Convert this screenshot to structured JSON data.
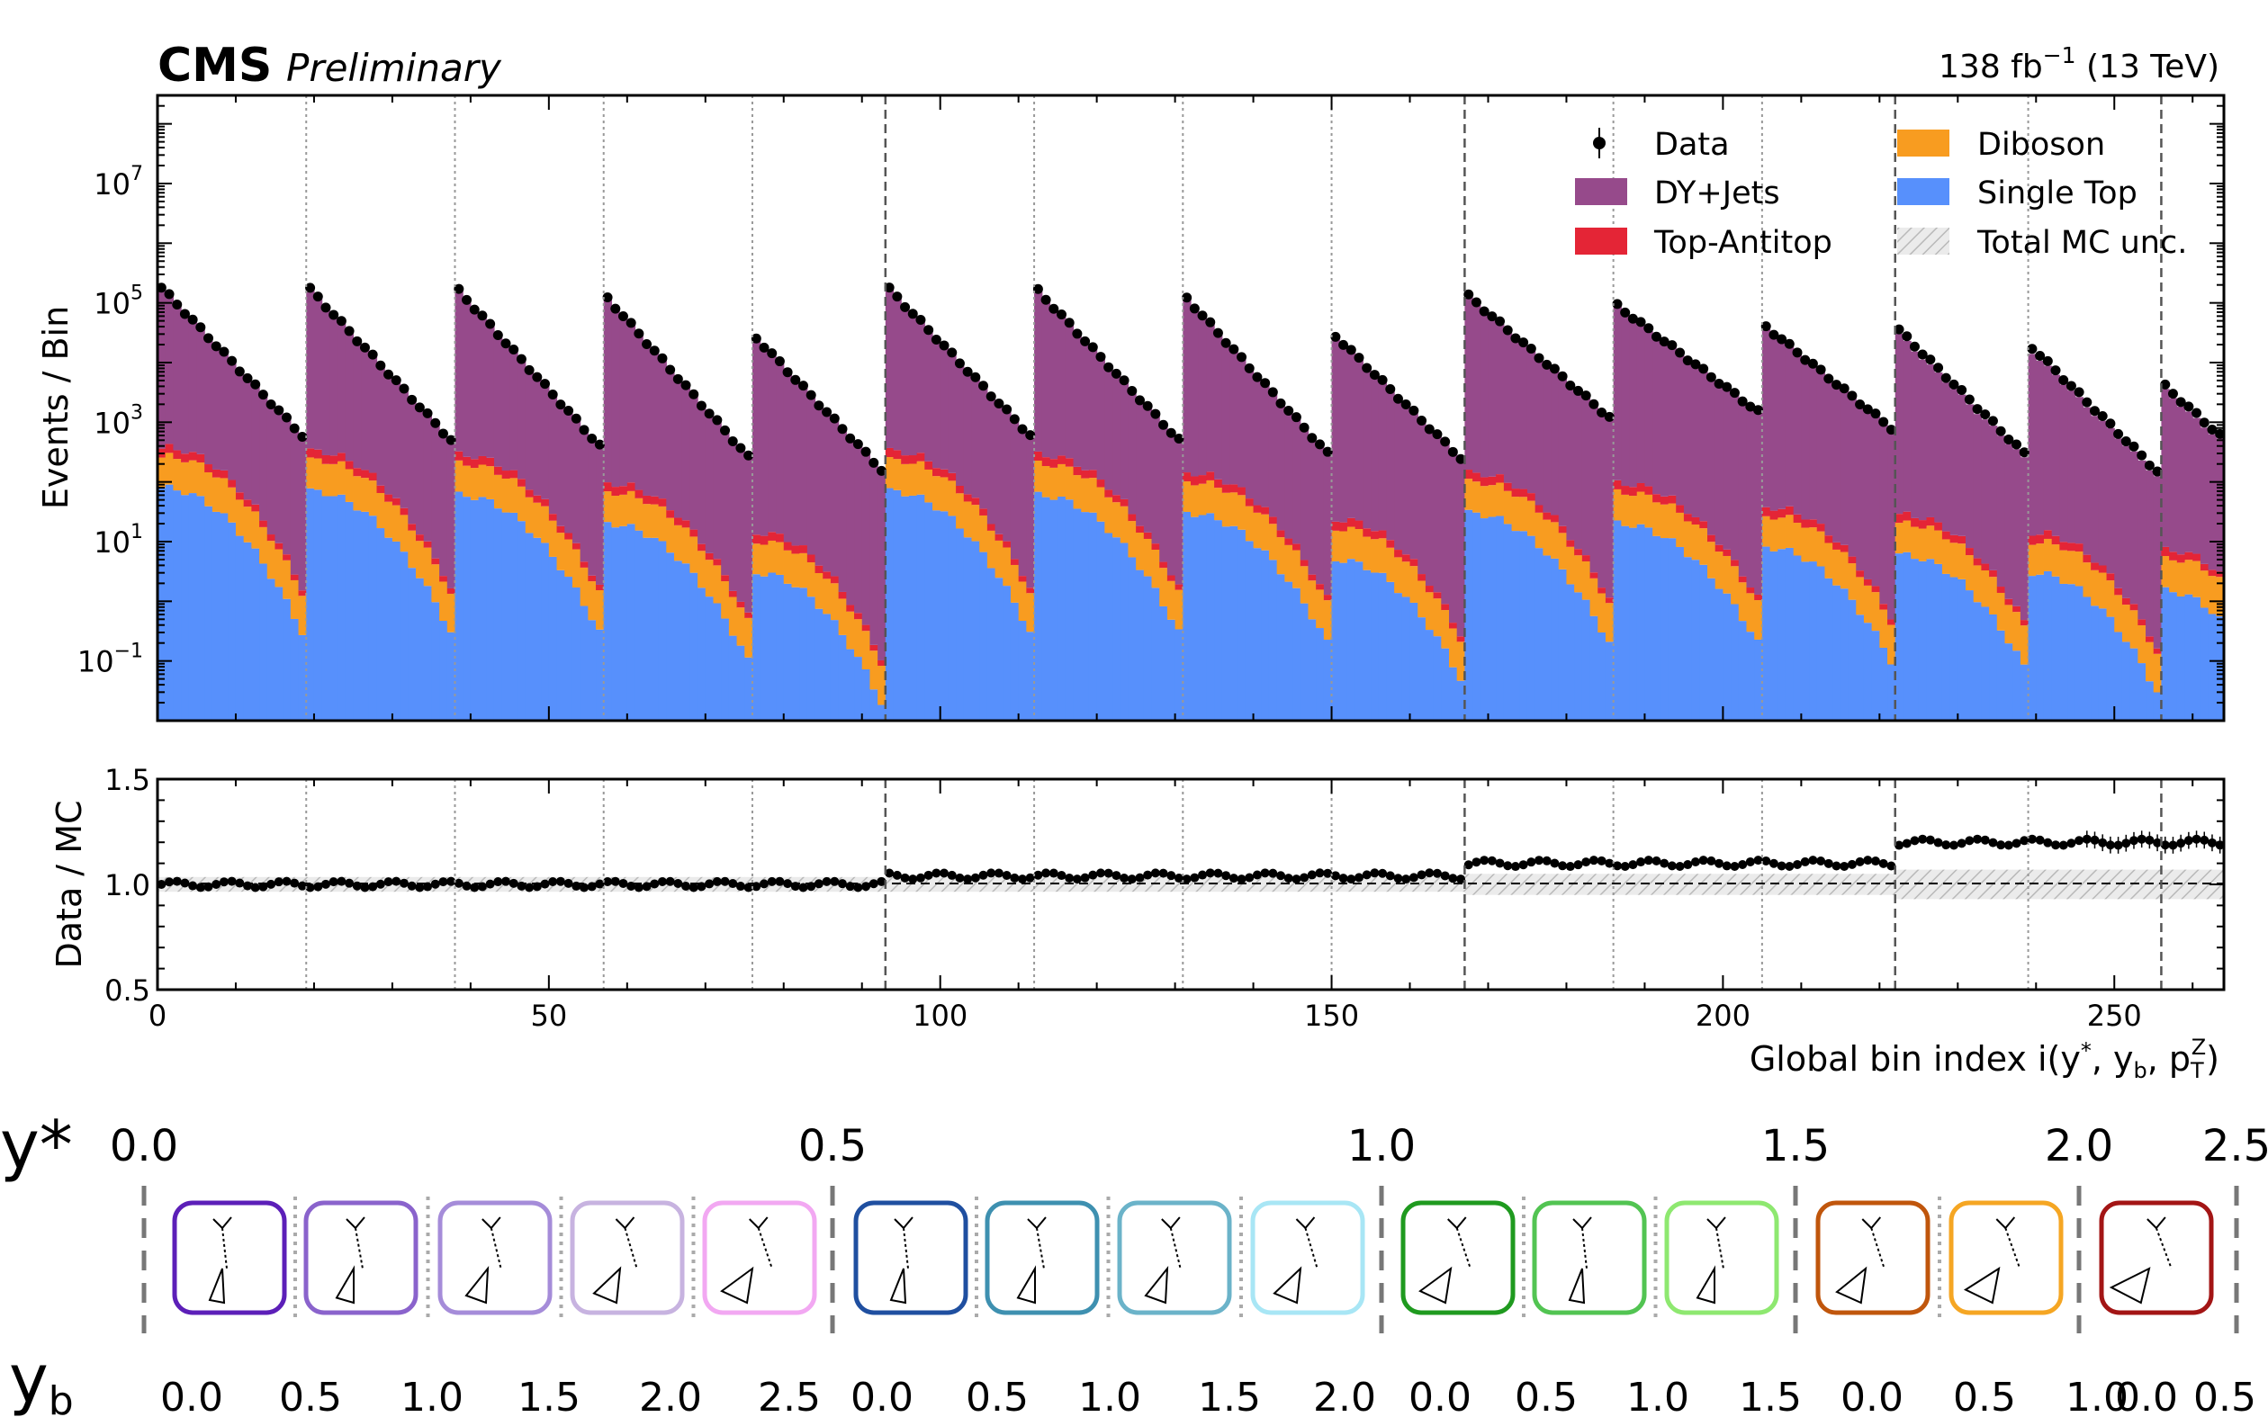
{
  "header": {
    "experiment": "CMS",
    "status": "Preliminary",
    "lumi_prefix": "138 fb",
    "lumi_exp": "−1",
    "lumi_suffix": " (13 TeV)"
  },
  "legend": {
    "data": "Data",
    "dyjets": "DY+Jets",
    "ttbar": "Top-Antitop",
    "diboson": "Diboson",
    "singletop": "Single Top",
    "unc": "Total MC unc."
  },
  "axes": {
    "top_ylabel": "Events / Bin",
    "ratio_ylabel": "Data / MC",
    "xlabel_main": "Global bin index i(y",
    "xlabel_sup1": "*",
    "xlabel_mid": ", y",
    "xlabel_sub1": "b",
    "xlabel_mid2": ", p",
    "xlabel_sub2": "T",
    "xlabel_sup2": "Z",
    "xlabel_end": ")",
    "top_yticks": [
      {
        "base": "10",
        "exp": "−1",
        "value": 0.1
      },
      {
        "base": "10",
        "exp": "1",
        "value": 10
      },
      {
        "base": "10",
        "exp": "3",
        "value": 1000
      },
      {
        "base": "10",
        "exp": "5",
        "value": 100000
      },
      {
        "base": "10",
        "exp": "7",
        "value": 10000000
      }
    ],
    "ratio_yticks": [
      "0.5",
      "1.0",
      "1.5"
    ],
    "xticks": [
      "0",
      "50",
      "100",
      "150",
      "200",
      "250"
    ]
  },
  "scheme": {
    "ystar_symbol": "y*",
    "yb_symbol": "y",
    "yb_sub": "b",
    "ystar_labels": [
      "0.0",
      "0.5",
      "1.0",
      "1.5",
      "2.0",
      "2.5"
    ],
    "yb_labels": [
      "0.0",
      "0.5",
      "1.0",
      "1.5",
      "2.0",
      "2.5",
      "0.0",
      "0.5",
      "1.0",
      "1.5",
      "2.0",
      "0.0",
      "0.5",
      "1.0",
      "1.5",
      "0.0",
      "0.5",
      "1.0",
      "0.0",
      "0.5"
    ],
    "box_colors": [
      "#5c1fb8",
      "#8a63cc",
      "#a58cd9",
      "#c7b3e0",
      "#f2a8f2",
      "#1f4fa0",
      "#3e90b0",
      "#6bb3c9",
      "#a8e6f5",
      "#1f9a1f",
      "#52c452",
      "#8ee870",
      "#c0560c",
      "#f5a623",
      "#a31515"
    ]
  },
  "chart_data": {
    "type": "bar",
    "stacked": true,
    "x_range": [
      0,
      264
    ],
    "y_scale": "log",
    "y_range": [
      0.01,
      300000000
    ],
    "ratio_range": [
      0.5,
      1.5
    ],
    "grid": false,
    "legend_position": "top-right",
    "colors": {
      "DY+Jets": "#964a8b",
      "Top-Antitop": "#e42536",
      "Diboson": "#f89c20",
      "Single Top": "#5790fc",
      "Total MC unc.": "#b9b9b9"
    },
    "block_edges": [
      0,
      19,
      38,
      57,
      76,
      93,
      112,
      131,
      150,
      167,
      186,
      205,
      222,
      239,
      256,
      264
    ],
    "major_block_edges": [
      93,
      167,
      222,
      256
    ],
    "blocks": [
      {
        "ystar": "0.0-0.5",
        "yb": "0.0-0.5",
        "data_first": 180000,
        "data_last": 600,
        "singletop_first": 80,
        "singletop_last": 0.3
      },
      {
        "ystar": "0.0-0.5",
        "yb": "0.5-1.0",
        "data_first": 170000,
        "data_last": 500,
        "singletop_first": 70,
        "singletop_last": 0.3
      },
      {
        "ystar": "0.0-0.5",
        "yb": "1.0-1.5",
        "data_first": 160000,
        "data_last": 400,
        "singletop_first": 60,
        "singletop_last": 0.3
      },
      {
        "ystar": "0.0-0.5",
        "yb": "1.5-2.0",
        "data_first": 120000,
        "data_last": 260,
        "singletop_first": 20,
        "singletop_last": 0.1
      },
      {
        "ystar": "0.0-0.5",
        "yb": "2.0-2.5",
        "data_first": 26000,
        "data_last": 160,
        "singletop_first": 3,
        "singletop_last": 0.02
      },
      {
        "ystar": "0.5-1.0",
        "yb": "0.0-0.5",
        "data_first": 170000,
        "data_last": 600,
        "singletop_first": 70,
        "singletop_last": 0.3
      },
      {
        "ystar": "0.5-1.0",
        "yb": "0.5-1.0",
        "data_first": 160000,
        "data_last": 500,
        "singletop_first": 60,
        "singletop_last": 0.3
      },
      {
        "ystar": "0.5-1.0",
        "yb": "1.0-1.5",
        "data_first": 120000,
        "data_last": 300,
        "singletop_first": 30,
        "singletop_last": 0.2
      },
      {
        "ystar": "0.5-1.0",
        "yb": "1.5-2.0",
        "data_first": 28000,
        "data_last": 250,
        "singletop_first": 5,
        "singletop_last": 0.05
      },
      {
        "ystar": "1.0-1.5",
        "yb": "0.0-0.5",
        "data_first": 130000,
        "data_last": 1200,
        "singletop_first": 30,
        "singletop_last": 0.2
      },
      {
        "ystar": "1.0-1.5",
        "yb": "0.5-1.0",
        "data_first": 90000,
        "data_last": 1500,
        "singletop_first": 20,
        "singletop_last": 0.2
      },
      {
        "ystar": "1.0-1.5",
        "yb": "1.0-1.5",
        "data_first": 40000,
        "data_last": 800,
        "singletop_first": 8,
        "singletop_last": 0.1
      },
      {
        "ystar": "1.5-2.0",
        "yb": "0.0-0.5",
        "data_first": 35000,
        "data_last": 300,
        "singletop_first": 6,
        "singletop_last": 0.08
      },
      {
        "ystar": "1.5-2.0",
        "yb": "0.5-1.0",
        "data_first": 18000,
        "data_last": 150,
        "singletop_first": 3,
        "singletop_last": 0.03
      },
      {
        "ystar": "2.0-2.5",
        "yb": "0.0-0.5",
        "data_first": 4000,
        "data_last": 600,
        "singletop_first": 1.5,
        "singletop_last": 0.5
      }
    ],
    "ratio": {
      "description_values": [
        {
          "x_range": [
            0,
            93
          ],
          "value": 1.0
        },
        {
          "x_range": [
            93,
            167
          ],
          "value": 1.04
        },
        {
          "x_range": [
            167,
            222
          ],
          "value": 1.1
        },
        {
          "x_range": [
            222,
            264
          ],
          "value": 1.2
        }
      ]
    }
  }
}
